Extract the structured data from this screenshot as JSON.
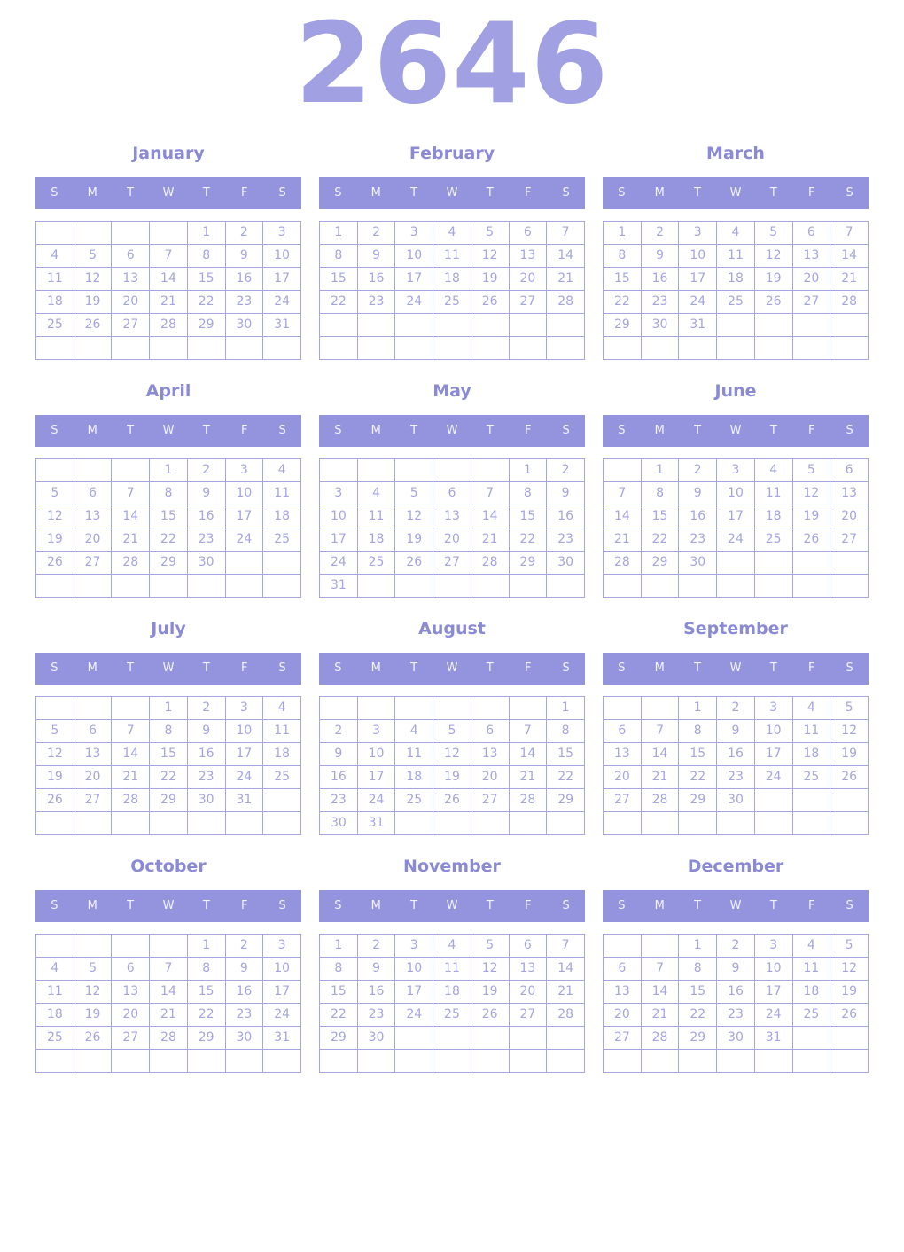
{
  "year": "2646",
  "weekday_headers": [
    "S",
    "M",
    "T",
    "W",
    "T",
    "F",
    "S"
  ],
  "colors": {
    "year_title": "#a0a0e2",
    "month_title": "#8a8ad5",
    "weekday_header_bg": "#9494de",
    "weekday_header_text": "#f3f3fc",
    "day_text": "#a5a5df",
    "grid_border": "#a6a6e3",
    "page_background": "#ffffff"
  },
  "months": [
    {
      "name": "January",
      "weeks": [
        [
          "",
          "",
          "",
          "",
          "1",
          "2",
          "3"
        ],
        [
          "4",
          "5",
          "6",
          "7",
          "8",
          "9",
          "10"
        ],
        [
          "11",
          "12",
          "13",
          "14",
          "15",
          "16",
          "17"
        ],
        [
          "18",
          "19",
          "20",
          "21",
          "22",
          "23",
          "24"
        ],
        [
          "25",
          "26",
          "27",
          "28",
          "29",
          "30",
          "31"
        ],
        [
          "",
          "",
          "",
          "",
          "",
          "",
          ""
        ]
      ]
    },
    {
      "name": "February",
      "weeks": [
        [
          "1",
          "2",
          "3",
          "4",
          "5",
          "6",
          "7"
        ],
        [
          "8",
          "9",
          "10",
          "11",
          "12",
          "13",
          "14"
        ],
        [
          "15",
          "16",
          "17",
          "18",
          "19",
          "20",
          "21"
        ],
        [
          "22",
          "23",
          "24",
          "25",
          "26",
          "27",
          "28"
        ],
        [
          "",
          "",
          "",
          "",
          "",
          "",
          ""
        ],
        [
          "",
          "",
          "",
          "",
          "",
          "",
          ""
        ]
      ]
    },
    {
      "name": "March",
      "weeks": [
        [
          "1",
          "2",
          "3",
          "4",
          "5",
          "6",
          "7"
        ],
        [
          "8",
          "9",
          "10",
          "11",
          "12",
          "13",
          "14"
        ],
        [
          "15",
          "16",
          "17",
          "18",
          "19",
          "20",
          "21"
        ],
        [
          "22",
          "23",
          "24",
          "25",
          "26",
          "27",
          "28"
        ],
        [
          "29",
          "30",
          "31",
          "",
          "",
          "",
          ""
        ],
        [
          "",
          "",
          "",
          "",
          "",
          "",
          ""
        ]
      ]
    },
    {
      "name": "April",
      "weeks": [
        [
          "",
          "",
          "",
          "1",
          "2",
          "3",
          "4"
        ],
        [
          "5",
          "6",
          "7",
          "8",
          "9",
          "10",
          "11"
        ],
        [
          "12",
          "13",
          "14",
          "15",
          "16",
          "17",
          "18"
        ],
        [
          "19",
          "20",
          "21",
          "22",
          "23",
          "24",
          "25"
        ],
        [
          "26",
          "27",
          "28",
          "29",
          "30",
          "",
          ""
        ],
        [
          "",
          "",
          "",
          "",
          "",
          "",
          ""
        ]
      ]
    },
    {
      "name": "May",
      "weeks": [
        [
          "",
          "",
          "",
          "",
          "",
          "1",
          "2"
        ],
        [
          "3",
          "4",
          "5",
          "6",
          "7",
          "8",
          "9"
        ],
        [
          "10",
          "11",
          "12",
          "13",
          "14",
          "15",
          "16"
        ],
        [
          "17",
          "18",
          "19",
          "20",
          "21",
          "22",
          "23"
        ],
        [
          "24",
          "25",
          "26",
          "27",
          "28",
          "29",
          "30"
        ],
        [
          "31",
          "",
          "",
          "",
          "",
          "",
          ""
        ]
      ]
    },
    {
      "name": "June",
      "weeks": [
        [
          "",
          "1",
          "2",
          "3",
          "4",
          "5",
          "6"
        ],
        [
          "7",
          "8",
          "9",
          "10",
          "11",
          "12",
          "13"
        ],
        [
          "14",
          "15",
          "16",
          "17",
          "18",
          "19",
          "20"
        ],
        [
          "21",
          "22",
          "23",
          "24",
          "25",
          "26",
          "27"
        ],
        [
          "28",
          "29",
          "30",
          "",
          "",
          "",
          ""
        ],
        [
          "",
          "",
          "",
          "",
          "",
          "",
          ""
        ]
      ]
    },
    {
      "name": "July",
      "weeks": [
        [
          "",
          "",
          "",
          "1",
          "2",
          "3",
          "4"
        ],
        [
          "5",
          "6",
          "7",
          "8",
          "9",
          "10",
          "11"
        ],
        [
          "12",
          "13",
          "14",
          "15",
          "16",
          "17",
          "18"
        ],
        [
          "19",
          "20",
          "21",
          "22",
          "23",
          "24",
          "25"
        ],
        [
          "26",
          "27",
          "28",
          "29",
          "30",
          "31",
          ""
        ],
        [
          "",
          "",
          "",
          "",
          "",
          "",
          ""
        ]
      ]
    },
    {
      "name": "August",
      "weeks": [
        [
          "",
          "",
          "",
          "",
          "",
          "",
          "1"
        ],
        [
          "2",
          "3",
          "4",
          "5",
          "6",
          "7",
          "8"
        ],
        [
          "9",
          "10",
          "11",
          "12",
          "13",
          "14",
          "15"
        ],
        [
          "16",
          "17",
          "18",
          "19",
          "20",
          "21",
          "22"
        ],
        [
          "23",
          "24",
          "25",
          "26",
          "27",
          "28",
          "29"
        ],
        [
          "30",
          "31",
          "",
          "",
          "",
          "",
          ""
        ]
      ]
    },
    {
      "name": "September",
      "weeks": [
        [
          "",
          "",
          "1",
          "2",
          "3",
          "4",
          "5"
        ],
        [
          "6",
          "7",
          "8",
          "9",
          "10",
          "11",
          "12"
        ],
        [
          "13",
          "14",
          "15",
          "16",
          "17",
          "18",
          "19"
        ],
        [
          "20",
          "21",
          "22",
          "23",
          "24",
          "25",
          "26"
        ],
        [
          "27",
          "28",
          "29",
          "30",
          "",
          "",
          ""
        ],
        [
          "",
          "",
          "",
          "",
          "",
          "",
          ""
        ]
      ]
    },
    {
      "name": "October",
      "weeks": [
        [
          "",
          "",
          "",
          "",
          "1",
          "2",
          "3"
        ],
        [
          "4",
          "5",
          "6",
          "7",
          "8",
          "9",
          "10"
        ],
        [
          "11",
          "12",
          "13",
          "14",
          "15",
          "16",
          "17"
        ],
        [
          "18",
          "19",
          "20",
          "21",
          "22",
          "23",
          "24"
        ],
        [
          "25",
          "26",
          "27",
          "28",
          "29",
          "30",
          "31"
        ],
        [
          "",
          "",
          "",
          "",
          "",
          "",
          ""
        ]
      ]
    },
    {
      "name": "November",
      "weeks": [
        [
          "1",
          "2",
          "3",
          "4",
          "5",
          "6",
          "7"
        ],
        [
          "8",
          "9",
          "10",
          "11",
          "12",
          "13",
          "14"
        ],
        [
          "15",
          "16",
          "17",
          "18",
          "19",
          "20",
          "21"
        ],
        [
          "22",
          "23",
          "24",
          "25",
          "26",
          "27",
          "28"
        ],
        [
          "29",
          "30",
          "",
          "",
          "",
          "",
          ""
        ],
        [
          "",
          "",
          "",
          "",
          "",
          "",
          ""
        ]
      ]
    },
    {
      "name": "December",
      "weeks": [
        [
          "",
          "",
          "1",
          "2",
          "3",
          "4",
          "5"
        ],
        [
          "6",
          "7",
          "8",
          "9",
          "10",
          "11",
          "12"
        ],
        [
          "13",
          "14",
          "15",
          "16",
          "17",
          "18",
          "19"
        ],
        [
          "20",
          "21",
          "22",
          "23",
          "24",
          "25",
          "26"
        ],
        [
          "27",
          "28",
          "29",
          "30",
          "31",
          "",
          ""
        ],
        [
          "",
          "",
          "",
          "",
          "",
          "",
          ""
        ]
      ]
    }
  ]
}
